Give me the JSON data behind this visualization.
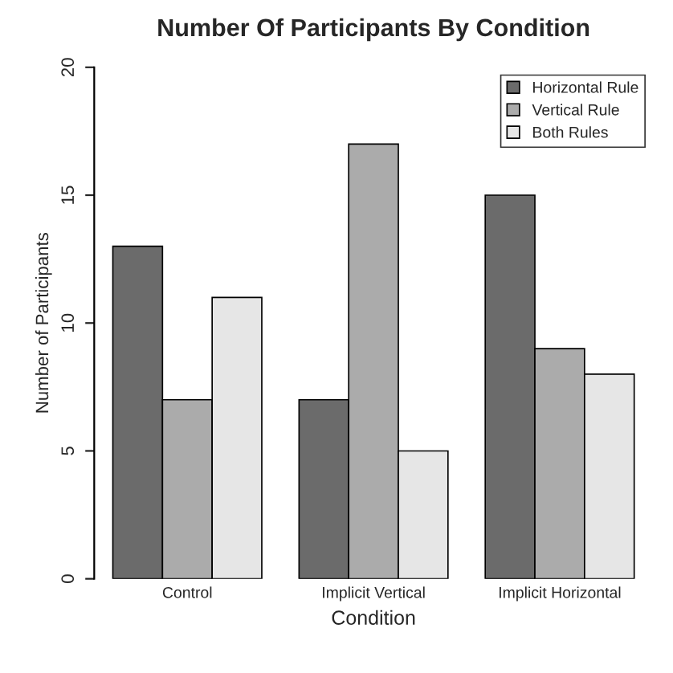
{
  "chart_data": {
    "type": "bar",
    "title": "Number Of Participants By Condition",
    "xlabel": "Condition",
    "ylabel": "Number of Participants",
    "categories": [
      "Control",
      "Implicit Vertical",
      "Implicit Horizontal"
    ],
    "series": [
      {
        "name": "Horizontal Rule",
        "color": "#6b6b6b",
        "values": [
          13,
          7,
          15
        ]
      },
      {
        "name": "Vertical Rule",
        "color": "#ababab",
        "values": [
          7,
          17,
          9
        ]
      },
      {
        "name": "Both Rules",
        "color": "#e6e6e6",
        "values": [
          11,
          5,
          8
        ]
      }
    ],
    "ylim": [
      0,
      20
    ],
    "yticks": [
      0,
      5,
      10,
      15,
      20
    ],
    "grid": false,
    "legend": "top right"
  }
}
